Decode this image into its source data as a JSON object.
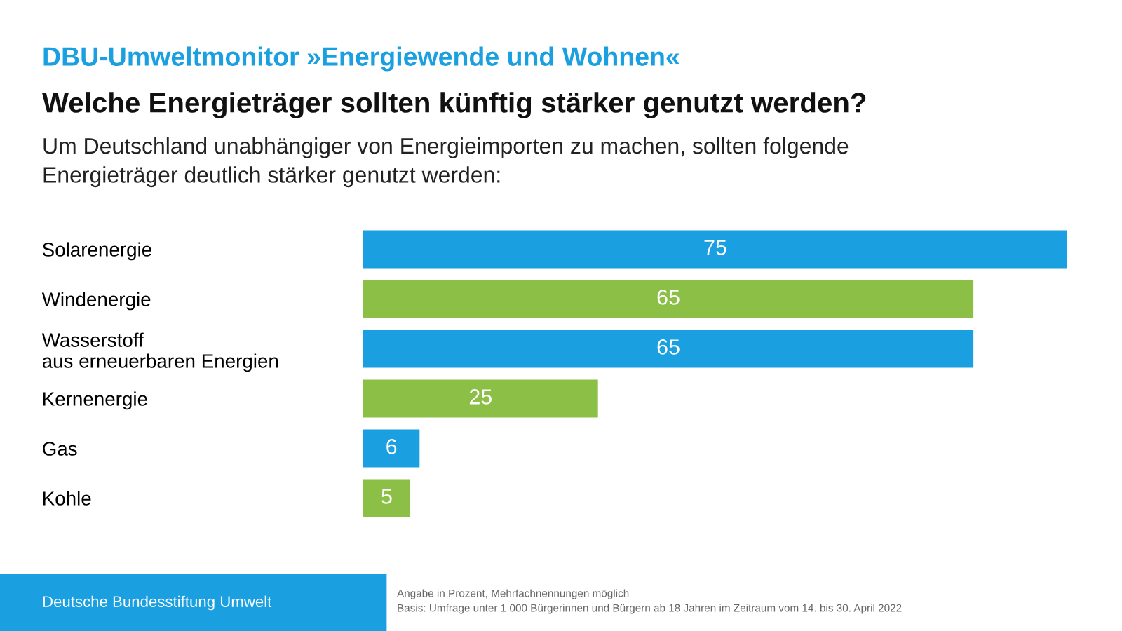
{
  "chart_data": {
    "type": "bar",
    "orientation": "horizontal",
    "title": "DBU-Umweltmonitor »Energiewende und Wohnen«",
    "subtitle": "Welche Energieträger sollten künftig stärker genutzt werden?",
    "categories": [
      "Solarenergie",
      "Windenergie",
      "Wasserstoff\naus erneuerbaren Energien",
      "Kernenergie",
      "Gas",
      "Kohle"
    ],
    "values": [
      75,
      65,
      65,
      25,
      6,
      5
    ],
    "colors": [
      "#1a9fe0",
      "#8cbf45",
      "#1a9fe0",
      "#8cbf45",
      "#1a9fe0",
      "#8cbf45"
    ],
    "xlim": [
      0,
      75
    ],
    "data_labels": true,
    "grid": false,
    "legend": false,
    "tick_labels": "y",
    "annotations": [
      "Um Deutschland unabhängiger von Energieimporten zu machen, sollten folgende\nEnergieträger deutlich stärker genutzt werden:",
      "Deutsche Bundesstiftung Umwelt",
      "Angabe in Prozent, Mehrfachnennungen möglich\nBasis: Umfrage unter 1 000 Bürgerinnen und Bürgern ab 18 Jahren im Zeitraum vom 14. bis 30. April 2022"
    ]
  }
}
